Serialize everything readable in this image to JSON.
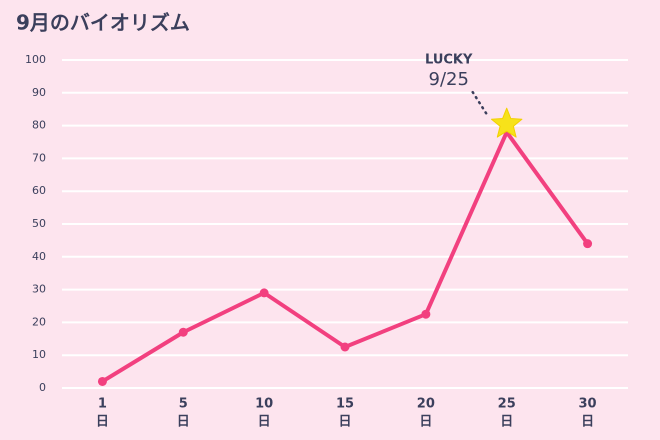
{
  "chart_data": {
    "type": "line",
    "title": "9月のバイオリズム",
    "categories": [
      "1",
      "5",
      "10",
      "15",
      "20",
      "25",
      "30"
    ],
    "category_suffix": "日",
    "values": [
      2,
      17,
      29,
      12.5,
      22.5,
      78,
      44
    ],
    "color": "#f2407f",
    "ylim": [
      0,
      100
    ],
    "yticks": [
      0,
      10,
      20,
      30,
      40,
      50,
      60,
      70,
      80,
      90,
      100
    ],
    "grid": true,
    "annotation": {
      "label": "LUCKY",
      "date": "9/25",
      "point": 5,
      "marker_color": "#f7e21a"
    }
  }
}
